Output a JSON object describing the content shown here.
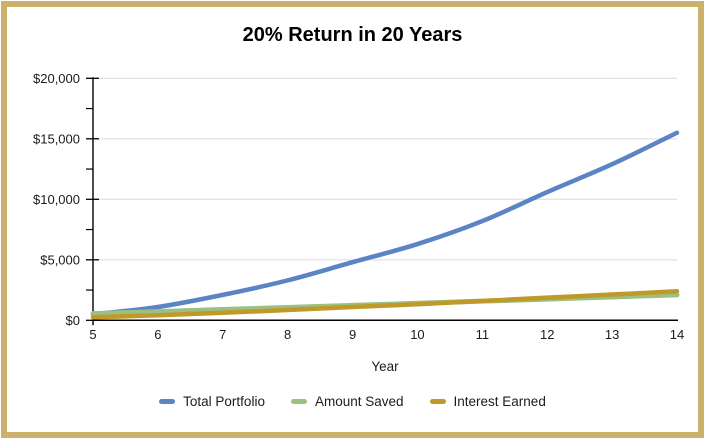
{
  "frame": {
    "border_color": "#ccb06c",
    "background": "#ffffff"
  },
  "chart_data": {
    "type": "line",
    "title": "20% Return in 20 Years",
    "xlabel": "Year",
    "x": [
      5,
      6,
      7,
      8,
      9,
      10,
      11,
      12,
      13,
      14
    ],
    "x_range": [
      5,
      14
    ],
    "ylim": [
      0,
      20000
    ],
    "y_ticks": [
      {
        "label": "$0",
        "value": 0
      },
      {
        "label": "$5,000",
        "value": 5000
      },
      {
        "label": "$10,000",
        "value": 10000
      },
      {
        "label": "$15,000",
        "value": 15000
      },
      {
        "label": "$20,000",
        "value": 20000
      }
    ],
    "y_minor_ticks": [
      2500,
      7500,
      12500,
      17500
    ],
    "grid": "horizontal",
    "legend_position": "bottom",
    "series": [
      {
        "name": "Total Portfolio",
        "color": "#5b84c4",
        "width": 4.5,
        "values": [
          500,
          1100,
          2100,
          3300,
          4800,
          6300,
          8200,
          10600,
          12900,
          15500
        ]
      },
      {
        "name": "Amount Saved",
        "color": "#9cbf84",
        "width": 5,
        "values": [
          550,
          720,
          890,
          1060,
          1230,
          1410,
          1580,
          1750,
          1930,
          2100
        ]
      },
      {
        "name": "Interest Earned",
        "color": "#bf9a28",
        "width": 4.5,
        "values": [
          250,
          420,
          620,
          850,
          1100,
          1330,
          1600,
          1870,
          2130,
          2400
        ]
      }
    ],
    "colors": {
      "gridline": "#e4e4e4",
      "axis": "#000000",
      "label": "#1c1c1c"
    }
  }
}
